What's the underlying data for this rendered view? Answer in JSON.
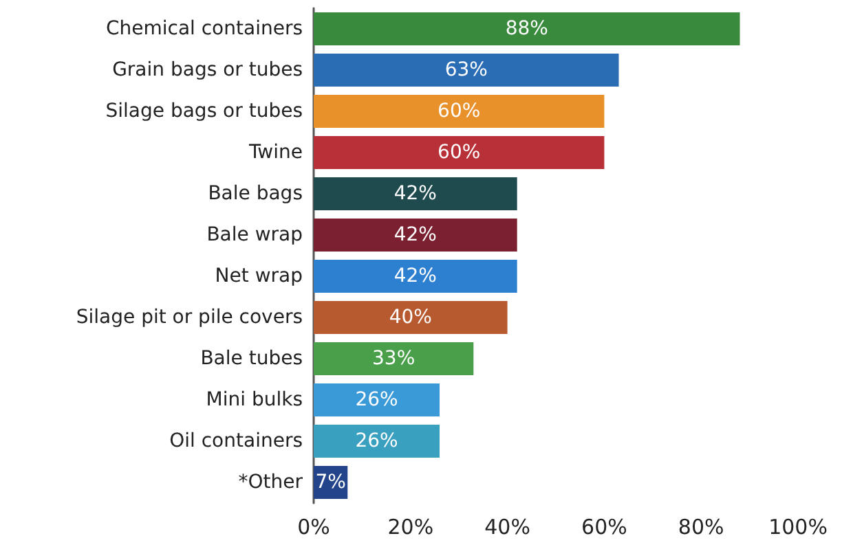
{
  "chart_data": {
    "type": "bar",
    "orientation": "horizontal",
    "categories": [
      "Chemical containers",
      "Grain bags or tubes",
      "Silage bags or tubes",
      "Twine",
      "Bale bags",
      "Bale wrap",
      "Net wrap",
      "Silage pit or pile covers",
      "Bale tubes",
      "Mini bulks",
      "Oil containers",
      "*Other"
    ],
    "values": [
      88,
      63,
      60,
      60,
      42,
      42,
      42,
      40,
      33,
      26,
      26,
      7
    ],
    "value_labels": [
      "88%",
      "63%",
      "60%",
      "60%",
      "42%",
      "42%",
      "42%",
      "40%",
      "33%",
      "26%",
      "26%",
      "7%"
    ],
    "colors": [
      "#3a8a3e",
      "#2a6db5",
      "#e8902a",
      "#b83038",
      "#1f4a4e",
      "#7a2030",
      "#2d7fd0",
      "#b85a30",
      "#4aa04a",
      "#3a9ad8",
      "#3aa0c0",
      "#23448a"
    ],
    "xlim": [
      0,
      100
    ],
    "xticks": [
      {
        "value": 0,
        "label": "0%"
      },
      {
        "value": 20,
        "label": "20%"
      },
      {
        "value": 40,
        "label": "40%"
      },
      {
        "value": 60,
        "label": "60%"
      },
      {
        "value": 80,
        "label": "80%"
      },
      {
        "value": 100,
        "label": "100%"
      }
    ],
    "grid": false
  }
}
